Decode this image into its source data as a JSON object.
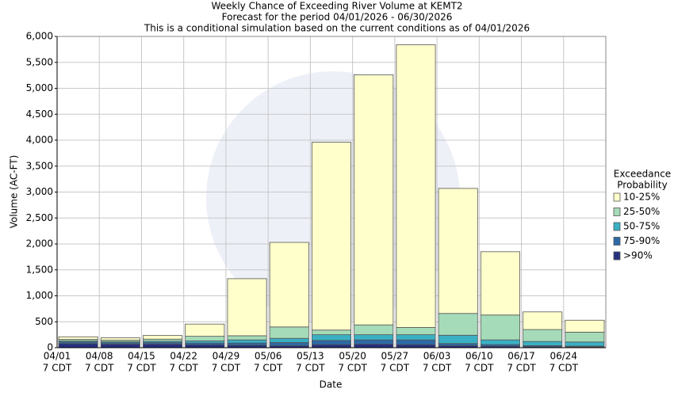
{
  "chart_data": {
    "type": "stacked_bar",
    "title": "Weekly Chance of Exceeding River Volume at KEMT2",
    "subtitle": "Forecast for the period 04/01/2026 - 06/30/2026",
    "subtitle2": "This is a conditional simulation based on the current conditions as of 04/01/2026",
    "x_label": "Date",
    "y_label": "Volume (AC-FT)",
    "categories": [
      "04/01",
      "04/08",
      "04/15",
      "04/22",
      "04/29",
      "05/06",
      "05/13",
      "05/20",
      "05/27",
      "06/03",
      "06/10",
      "06/17",
      "06/24"
    ],
    "category_sublabels": [
      "7 CDT",
      "7 CDT",
      "7 CDT",
      "7 CDT",
      "7 CDT",
      "7 CDT",
      "7 CDT",
      "7 CDT",
      "7 CDT",
      "7 CDT",
      "7 CDT",
      "7 CDT",
      "7 CDT"
    ],
    "series": [
      {
        "name": ">90%",
        "color": "#27317f",
        "values": [
          80,
          70,
          70,
          60,
          50,
          40,
          60,
          70,
          60,
          40,
          30,
          20,
          15
        ]
      },
      {
        "name": "75-90%",
        "color": "#2b6aa6",
        "values": [
          30,
          25,
          30,
          30,
          40,
          60,
          80,
          80,
          90,
          40,
          30,
          20,
          15
        ]
      },
      {
        "name": "50-75%",
        "color": "#3ab0c4",
        "values": [
          20,
          20,
          25,
          40,
          60,
          80,
          110,
          100,
          100,
          160,
          90,
          80,
          80
        ]
      },
      {
        "name": "25-50%",
        "color": "#a5dbb8",
        "values": [
          30,
          30,
          40,
          90,
          80,
          220,
          90,
          190,
          140,
          420,
          480,
          230,
          190
        ]
      },
      {
        "name": "10-25%",
        "color": "#ffffcc",
        "values": [
          50,
          45,
          70,
          235,
          1100,
          1630,
          3620,
          4820,
          5450,
          2410,
          1220,
          340,
          230
        ]
      }
    ],
    "ylim": [
      0,
      6000
    ],
    "yticks": [
      0,
      500,
      {
        "value": 1000,
        "label": "1,000"
      },
      {
        "value": 1500,
        "label": "1,500"
      },
      {
        "value": 2000,
        "label": "2,000"
      },
      {
        "value": 2500,
        "label": "2,500"
      },
      {
        "value": 3000,
        "label": "3,000"
      },
      {
        "value": 3500,
        "label": "3,500"
      },
      {
        "value": 4000,
        "label": "4,000"
      },
      {
        "value": 4500,
        "label": "4,500"
      },
      {
        "value": 5000,
        "label": "5,000"
      },
      {
        "value": 5500,
        "label": "5,500"
      },
      {
        "value": 6000,
        "label": "6,000"
      }
    ],
    "legend_title": [
      "Exceedance",
      "Probability"
    ],
    "legend_position": "right",
    "grid": true
  }
}
